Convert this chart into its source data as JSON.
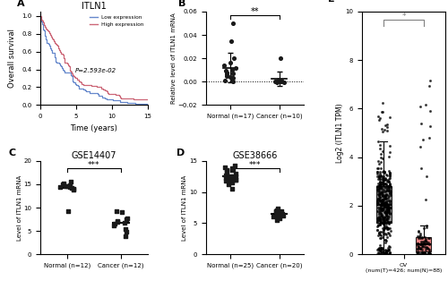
{
  "panel_A": {
    "title": "ITLN1",
    "xlabel": "Time (years)",
    "ylabel": "Overall survival",
    "pvalue": "P=2.593e-02",
    "low_color": "#6688cc",
    "high_color": "#cc6677",
    "legend_labels": [
      "Low expression",
      "High expression"
    ],
    "xlim": [
      0,
      15
    ],
    "ylim": [
      0,
      1.05
    ],
    "xticks": [
      0,
      5,
      10,
      15
    ],
    "yticks": [
      0.0,
      0.2,
      0.4,
      0.6,
      0.8,
      1.0
    ]
  },
  "panel_B": {
    "ylabel": "Relative level of ITLN1 mRNA",
    "group1_label": "Normal (n=17)",
    "group2_label": "Cancer (n=10)",
    "ylim": [
      -0.02,
      0.06
    ],
    "significance": "**",
    "dotted_line": 0.0
  },
  "panel_C": {
    "title": "GSE14407",
    "ylabel": "Level of ITLN1 mRNA",
    "group1_label": "Normal (n=12)",
    "group2_label": "Cancer (n=12)",
    "ylim": [
      0,
      20
    ],
    "yticks": [
      0,
      5,
      10,
      15,
      20
    ],
    "significance": "***"
  },
  "panel_D": {
    "title": "GSE38666",
    "ylabel": "Level of ITLN1 mRNA",
    "group1_label": "Normal (n=25)",
    "group2_label": "Cancer (n=20)",
    "ylim": [
      0,
      15
    ],
    "yticks": [
      0,
      5,
      10,
      15
    ],
    "significance": "***"
  },
  "panel_E": {
    "ylabel": "Log2 (ITLN1 TPM)",
    "xlabel_center": "OV",
    "xlabel_sub": "(num(T)=426; num(N)=88)",
    "tumor_color": "#808080",
    "normal_color": "#e87070",
    "ylim": [
      0,
      10
    ],
    "yticks": [
      0,
      2,
      4,
      6,
      8,
      10
    ],
    "significance": "*"
  },
  "bg_color": "#ffffff",
  "dot_color": "#1a1a1a"
}
